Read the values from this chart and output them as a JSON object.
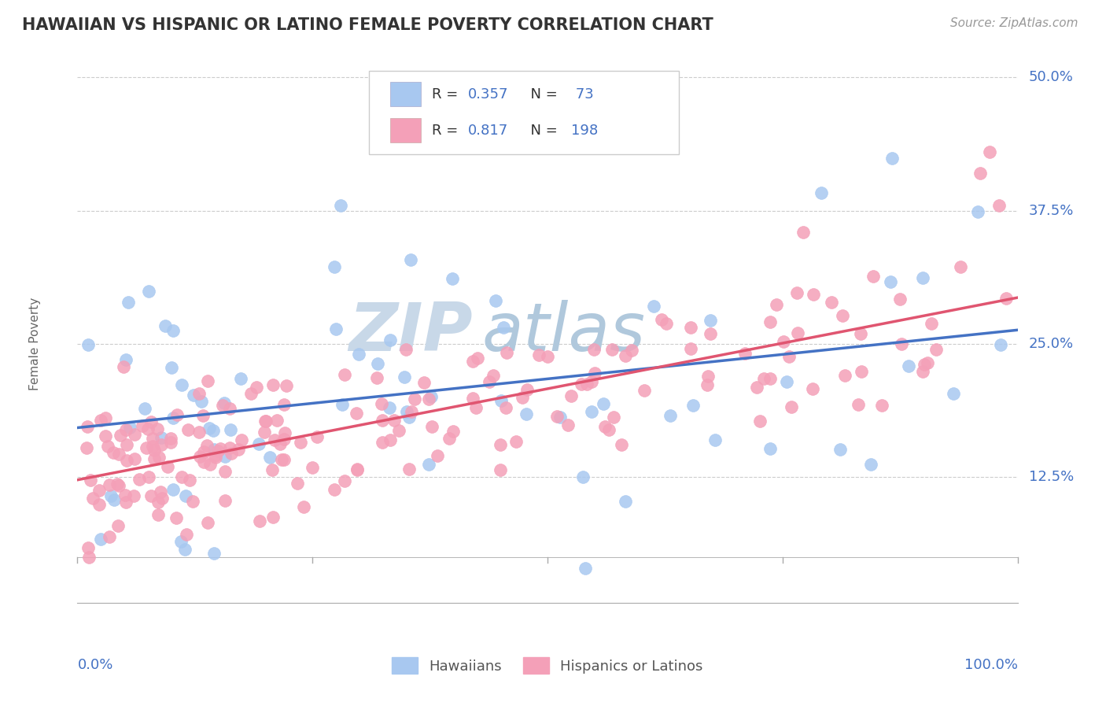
{
  "title": "HAWAIIAN VS HISPANIC OR LATINO FEMALE POVERTY CORRELATION CHART",
  "source_text": "Source: ZipAtlas.com",
  "ylabel": "Female Poverty",
  "xlim": [
    0.0,
    1.0
  ],
  "ylim": [
    -0.02,
    0.52
  ],
  "plot_ylim": [
    -0.02,
    0.52
  ],
  "ytick_values": [
    0.125,
    0.25,
    0.375,
    0.5
  ],
  "ytick_labels": [
    "12.5%",
    "25.0%",
    "37.5%",
    "50.0%"
  ],
  "legend_line1": "R = 0.357   N =  73",
  "legend_line2": "R = 0.817   N = 198",
  "color_hawaiian": "#a8c8f0",
  "color_hispanic": "#f4a0b8",
  "trendline_hawaiian": "#4472c4",
  "trendline_hispanic": "#e05570",
  "grid_color": "#cccccc",
  "title_color": "#333333",
  "axis_label_color": "#666666",
  "tick_label_color": "#4472c4",
  "source_color": "#999999",
  "watermark_zip_color": "#c8d8e8",
  "watermark_atlas_color": "#b0c8dc"
}
